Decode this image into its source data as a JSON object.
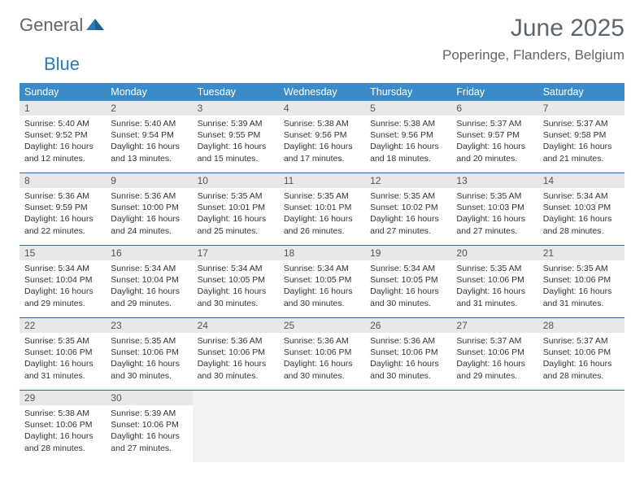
{
  "logo": {
    "general": "General",
    "blue": "Blue"
  },
  "title": "June 2025",
  "location": "Poperinge, Flanders, Belgium",
  "colors": {
    "header_bg": "#3b8bc8",
    "header_text": "#ffffff",
    "daynum_bg": "#e8e8e8",
    "row_border": "#2a6ca3",
    "empty_bg": "#f2f2f2",
    "logo_gray": "#5c6670",
    "logo_blue": "#2a7ab9"
  },
  "dow": [
    "Sunday",
    "Monday",
    "Tuesday",
    "Wednesday",
    "Thursday",
    "Friday",
    "Saturday"
  ],
  "weeks": [
    [
      {
        "n": "1",
        "sr": "Sunrise: 5:40 AM",
        "ss": "Sunset: 9:52 PM",
        "d1": "Daylight: 16 hours",
        "d2": "and 12 minutes."
      },
      {
        "n": "2",
        "sr": "Sunrise: 5:40 AM",
        "ss": "Sunset: 9:54 PM",
        "d1": "Daylight: 16 hours",
        "d2": "and 13 minutes."
      },
      {
        "n": "3",
        "sr": "Sunrise: 5:39 AM",
        "ss": "Sunset: 9:55 PM",
        "d1": "Daylight: 16 hours",
        "d2": "and 15 minutes."
      },
      {
        "n": "4",
        "sr": "Sunrise: 5:38 AM",
        "ss": "Sunset: 9:56 PM",
        "d1": "Daylight: 16 hours",
        "d2": "and 17 minutes."
      },
      {
        "n": "5",
        "sr": "Sunrise: 5:38 AM",
        "ss": "Sunset: 9:56 PM",
        "d1": "Daylight: 16 hours",
        "d2": "and 18 minutes."
      },
      {
        "n": "6",
        "sr": "Sunrise: 5:37 AM",
        "ss": "Sunset: 9:57 PM",
        "d1": "Daylight: 16 hours",
        "d2": "and 20 minutes."
      },
      {
        "n": "7",
        "sr": "Sunrise: 5:37 AM",
        "ss": "Sunset: 9:58 PM",
        "d1": "Daylight: 16 hours",
        "d2": "and 21 minutes."
      }
    ],
    [
      {
        "n": "8",
        "sr": "Sunrise: 5:36 AM",
        "ss": "Sunset: 9:59 PM",
        "d1": "Daylight: 16 hours",
        "d2": "and 22 minutes."
      },
      {
        "n": "9",
        "sr": "Sunrise: 5:36 AM",
        "ss": "Sunset: 10:00 PM",
        "d1": "Daylight: 16 hours",
        "d2": "and 24 minutes."
      },
      {
        "n": "10",
        "sr": "Sunrise: 5:35 AM",
        "ss": "Sunset: 10:01 PM",
        "d1": "Daylight: 16 hours",
        "d2": "and 25 minutes."
      },
      {
        "n": "11",
        "sr": "Sunrise: 5:35 AM",
        "ss": "Sunset: 10:01 PM",
        "d1": "Daylight: 16 hours",
        "d2": "and 26 minutes."
      },
      {
        "n": "12",
        "sr": "Sunrise: 5:35 AM",
        "ss": "Sunset: 10:02 PM",
        "d1": "Daylight: 16 hours",
        "d2": "and 27 minutes."
      },
      {
        "n": "13",
        "sr": "Sunrise: 5:35 AM",
        "ss": "Sunset: 10:03 PM",
        "d1": "Daylight: 16 hours",
        "d2": "and 27 minutes."
      },
      {
        "n": "14",
        "sr": "Sunrise: 5:34 AM",
        "ss": "Sunset: 10:03 PM",
        "d1": "Daylight: 16 hours",
        "d2": "and 28 minutes."
      }
    ],
    [
      {
        "n": "15",
        "sr": "Sunrise: 5:34 AM",
        "ss": "Sunset: 10:04 PM",
        "d1": "Daylight: 16 hours",
        "d2": "and 29 minutes."
      },
      {
        "n": "16",
        "sr": "Sunrise: 5:34 AM",
        "ss": "Sunset: 10:04 PM",
        "d1": "Daylight: 16 hours",
        "d2": "and 29 minutes."
      },
      {
        "n": "17",
        "sr": "Sunrise: 5:34 AM",
        "ss": "Sunset: 10:05 PM",
        "d1": "Daylight: 16 hours",
        "d2": "and 30 minutes."
      },
      {
        "n": "18",
        "sr": "Sunrise: 5:34 AM",
        "ss": "Sunset: 10:05 PM",
        "d1": "Daylight: 16 hours",
        "d2": "and 30 minutes."
      },
      {
        "n": "19",
        "sr": "Sunrise: 5:34 AM",
        "ss": "Sunset: 10:05 PM",
        "d1": "Daylight: 16 hours",
        "d2": "and 30 minutes."
      },
      {
        "n": "20",
        "sr": "Sunrise: 5:35 AM",
        "ss": "Sunset: 10:06 PM",
        "d1": "Daylight: 16 hours",
        "d2": "and 31 minutes."
      },
      {
        "n": "21",
        "sr": "Sunrise: 5:35 AM",
        "ss": "Sunset: 10:06 PM",
        "d1": "Daylight: 16 hours",
        "d2": "and 31 minutes."
      }
    ],
    [
      {
        "n": "22",
        "sr": "Sunrise: 5:35 AM",
        "ss": "Sunset: 10:06 PM",
        "d1": "Daylight: 16 hours",
        "d2": "and 31 minutes."
      },
      {
        "n": "23",
        "sr": "Sunrise: 5:35 AM",
        "ss": "Sunset: 10:06 PM",
        "d1": "Daylight: 16 hours",
        "d2": "and 30 minutes."
      },
      {
        "n": "24",
        "sr": "Sunrise: 5:36 AM",
        "ss": "Sunset: 10:06 PM",
        "d1": "Daylight: 16 hours",
        "d2": "and 30 minutes."
      },
      {
        "n": "25",
        "sr": "Sunrise: 5:36 AM",
        "ss": "Sunset: 10:06 PM",
        "d1": "Daylight: 16 hours",
        "d2": "and 30 minutes."
      },
      {
        "n": "26",
        "sr": "Sunrise: 5:36 AM",
        "ss": "Sunset: 10:06 PM",
        "d1": "Daylight: 16 hours",
        "d2": "and 30 minutes."
      },
      {
        "n": "27",
        "sr": "Sunrise: 5:37 AM",
        "ss": "Sunset: 10:06 PM",
        "d1": "Daylight: 16 hours",
        "d2": "and 29 minutes."
      },
      {
        "n": "28",
        "sr": "Sunrise: 5:37 AM",
        "ss": "Sunset: 10:06 PM",
        "d1": "Daylight: 16 hours",
        "d2": "and 28 minutes."
      }
    ],
    [
      {
        "n": "29",
        "sr": "Sunrise: 5:38 AM",
        "ss": "Sunset: 10:06 PM",
        "d1": "Daylight: 16 hours",
        "d2": "and 28 minutes."
      },
      {
        "n": "30",
        "sr": "Sunrise: 5:39 AM",
        "ss": "Sunset: 10:06 PM",
        "d1": "Daylight: 16 hours",
        "d2": "and 27 minutes."
      },
      {
        "empty": true
      },
      {
        "empty": true
      },
      {
        "empty": true
      },
      {
        "empty": true
      },
      {
        "empty": true
      }
    ]
  ]
}
